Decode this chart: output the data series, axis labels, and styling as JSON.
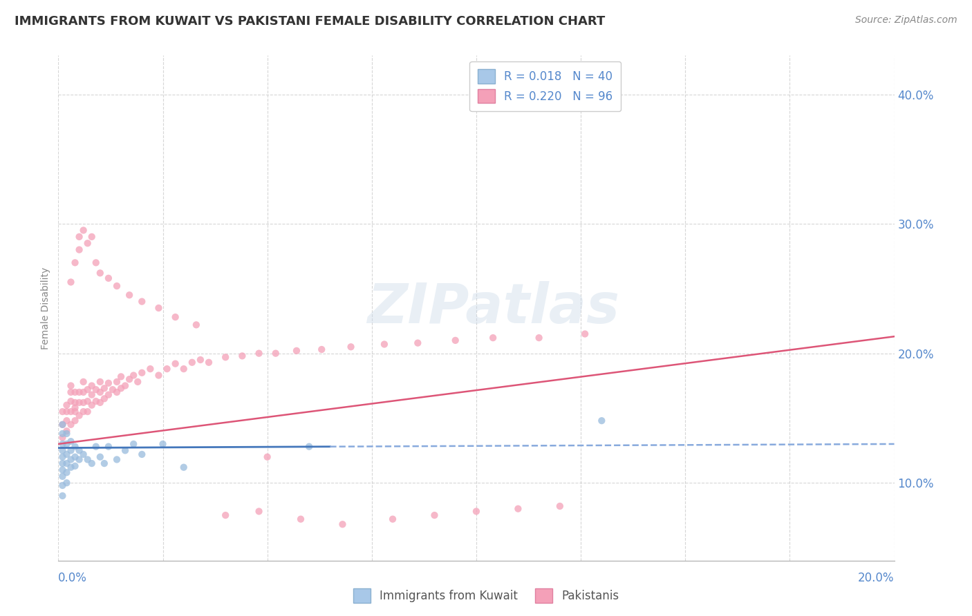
{
  "title": "IMMIGRANTS FROM KUWAIT VS PAKISTANI FEMALE DISABILITY CORRELATION CHART",
  "source": "Source: ZipAtlas.com",
  "ylabel": "Female Disability",
  "y_ticks": [
    0.1,
    0.2,
    0.3,
    0.4
  ],
  "y_tick_labels": [
    "10.0%",
    "20.0%",
    "30.0%",
    "40.0%"
  ],
  "xlim": [
    0.0,
    0.2
  ],
  "ylim": [
    0.04,
    0.43
  ],
  "blue_trend": {
    "x": [
      0.0,
      0.2
    ],
    "y": [
      0.127,
      0.13
    ],
    "solid_end": 0.065,
    "color": "#4477bb",
    "dashed_color": "#88aadd"
  },
  "pink_trend": {
    "x": [
      0.0,
      0.2
    ],
    "y": [
      0.13,
      0.213
    ],
    "color": "#dd5577"
  },
  "blue_points": {
    "color": "#99bbdd",
    "x": [
      0.001,
      0.001,
      0.001,
      0.001,
      0.001,
      0.001,
      0.001,
      0.001,
      0.001,
      0.001,
      0.002,
      0.002,
      0.002,
      0.002,
      0.002,
      0.002,
      0.003,
      0.003,
      0.003,
      0.003,
      0.004,
      0.004,
      0.004,
      0.005,
      0.005,
      0.006,
      0.007,
      0.008,
      0.009,
      0.01,
      0.011,
      0.012,
      0.014,
      0.016,
      0.018,
      0.02,
      0.025,
      0.03,
      0.06,
      0.13
    ],
    "y": [
      0.145,
      0.138,
      0.13,
      0.125,
      0.12,
      0.115,
      0.11,
      0.105,
      0.098,
      0.09,
      0.138,
      0.13,
      0.122,
      0.115,
      0.108,
      0.1,
      0.132,
      0.125,
      0.118,
      0.112,
      0.128,
      0.12,
      0.113,
      0.125,
      0.118,
      0.122,
      0.118,
      0.115,
      0.128,
      0.12,
      0.115,
      0.128,
      0.118,
      0.125,
      0.13,
      0.122,
      0.13,
      0.112,
      0.128,
      0.148
    ]
  },
  "pink_points": {
    "color": "#f4a0b8",
    "x": [
      0.001,
      0.001,
      0.001,
      0.002,
      0.002,
      0.002,
      0.002,
      0.003,
      0.003,
      0.003,
      0.003,
      0.003,
      0.004,
      0.004,
      0.004,
      0.004,
      0.004,
      0.005,
      0.005,
      0.005,
      0.006,
      0.006,
      0.006,
      0.006,
      0.007,
      0.007,
      0.007,
      0.008,
      0.008,
      0.008,
      0.009,
      0.009,
      0.01,
      0.01,
      0.01,
      0.011,
      0.011,
      0.012,
      0.012,
      0.013,
      0.014,
      0.014,
      0.015,
      0.015,
      0.016,
      0.017,
      0.018,
      0.019,
      0.02,
      0.022,
      0.024,
      0.026,
      0.028,
      0.03,
      0.032,
      0.034,
      0.036,
      0.04,
      0.044,
      0.048,
      0.052,
      0.057,
      0.063,
      0.07,
      0.078,
      0.086,
      0.095,
      0.104,
      0.115,
      0.126,
      0.003,
      0.004,
      0.005,
      0.005,
      0.006,
      0.007,
      0.008,
      0.009,
      0.01,
      0.012,
      0.014,
      0.017,
      0.02,
      0.024,
      0.028,
      0.033,
      0.04,
      0.048,
      0.05,
      0.058,
      0.068,
      0.08,
      0.09,
      0.1,
      0.11,
      0.12
    ],
    "y": [
      0.145,
      0.135,
      0.155,
      0.148,
      0.14,
      0.155,
      0.16,
      0.145,
      0.155,
      0.163,
      0.17,
      0.175,
      0.148,
      0.155,
      0.162,
      0.17,
      0.158,
      0.152,
      0.162,
      0.17,
      0.155,
      0.162,
      0.17,
      0.178,
      0.155,
      0.163,
      0.172,
      0.16,
      0.168,
      0.175,
      0.163,
      0.172,
      0.162,
      0.17,
      0.178,
      0.165,
      0.173,
      0.168,
      0.177,
      0.172,
      0.17,
      0.178,
      0.173,
      0.182,
      0.175,
      0.18,
      0.183,
      0.178,
      0.185,
      0.188,
      0.183,
      0.188,
      0.192,
      0.188,
      0.193,
      0.195,
      0.193,
      0.197,
      0.198,
      0.2,
      0.2,
      0.202,
      0.203,
      0.205,
      0.207,
      0.208,
      0.21,
      0.212,
      0.212,
      0.215,
      0.255,
      0.27,
      0.28,
      0.29,
      0.295,
      0.285,
      0.29,
      0.27,
      0.262,
      0.258,
      0.252,
      0.245,
      0.24,
      0.235,
      0.228,
      0.222,
      0.075,
      0.078,
      0.12,
      0.072,
      0.068,
      0.072,
      0.075,
      0.078,
      0.08,
      0.082
    ]
  },
  "background_color": "#ffffff",
  "grid_color": "#cccccc",
  "title_color": "#333333",
  "tick_color": "#5588cc"
}
